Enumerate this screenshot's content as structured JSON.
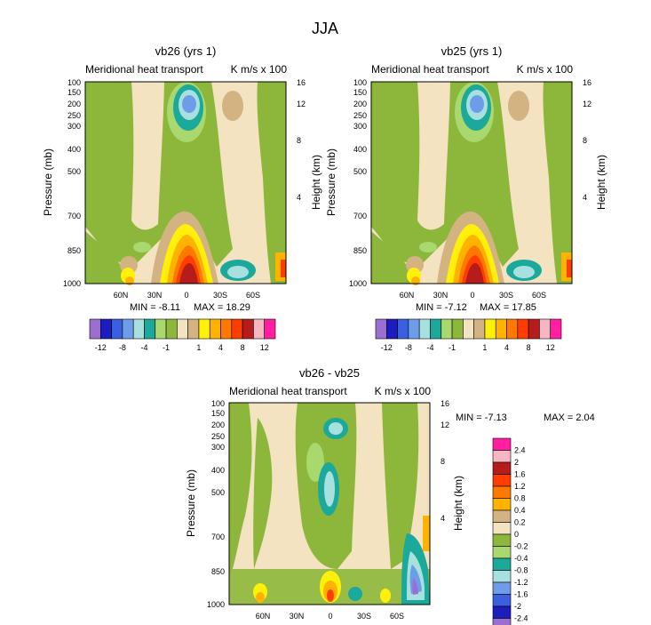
{
  "figure": {
    "title": "JJA",
    "left_tick_labels": [
      "100",
      "150",
      "200",
      "250",
      "300",
      "400",
      "500",
      "700",
      "850",
      "1000"
    ],
    "right_tick_labels": [
      "16",
      "12",
      "8",
      "4"
    ],
    "bottom_tick_labels": [
      "60N",
      "30N",
      "0",
      "30S",
      "60S"
    ]
  },
  "chart_data": [
    {
      "type": "heatmap",
      "panel": "vb26",
      "title": "vb26 (yrs 1)",
      "subtitle_left": "Meridional heat transport",
      "subtitle_right": "K m/s x 100",
      "ylabel": "Pressure (mb)",
      "ylabel_right": "Height (km)",
      "min_label": "MIN = -8.11",
      "max_label": "MAX = 18.29",
      "min": -8.11,
      "max": 18.29,
      "colorbar_labels": [
        "-12",
        "-8",
        "-4",
        "-1",
        "1",
        "4",
        "8",
        "12"
      ]
    },
    {
      "type": "heatmap",
      "panel": "vb25",
      "title": "vb25 (yrs 1)",
      "subtitle_left": "Meridional heat transport",
      "subtitle_right": "K m/s x 100",
      "ylabel": "Pressure (mb)",
      "ylabel_right": "Height (km)",
      "min_label": "MIN = -7.12",
      "max_label": "MAX = 17.85",
      "min": -7.12,
      "max": 17.85,
      "colorbar_labels": [
        "-12",
        "-8",
        "-4",
        "-1",
        "1",
        "4",
        "8",
        "12"
      ]
    },
    {
      "type": "heatmap",
      "panel": "diff",
      "title": "vb26 - vb25",
      "subtitle_left": "Meridional heat transport",
      "subtitle_right": "K m/s x 100",
      "ylabel": "Pressure (mb)",
      "ylabel_right": "Height (km)",
      "min_label": "MIN = -7.13",
      "max_label": "MAX = 2.04",
      "min": -7.13,
      "max": 2.04,
      "colorbar_labels": [
        "2.4",
        "2",
        "1.6",
        "1.2",
        "0.8",
        "0.4",
        "0.2",
        "0",
        "-0.2",
        "-0.4",
        "-0.8",
        "-1.2",
        "-1.6",
        "-2",
        "-2.4"
      ]
    }
  ],
  "colors": {
    "bar16": [
      "#9b6fd0",
      "#1d1dbf",
      "#3a5fe0",
      "#6d9de8",
      "#a8e0e0",
      "#1aa99a",
      "#a8d86e",
      "#8db73b",
      "#f3e3c0",
      "#d4b383",
      "#fff00a",
      "#ffb300",
      "#ff7800",
      "#ff3d00",
      "#b71c1c",
      "#f6b6c2",
      "#ff1fa0"
    ],
    "diff": [
      "#ff1fa0",
      "#f6b6c2",
      "#b71c1c",
      "#ff3d00",
      "#ff7800",
      "#ffb300",
      "#d4b383",
      "#f3e3c0",
      "#8db73b",
      "#a8d86e",
      "#1aa99a",
      "#a8e0e0",
      "#6d9de8",
      "#3a5fe0",
      "#1d1dbf",
      "#9b6fd0"
    ],
    "bg": "#f3e3c0",
    "green": "#8db73b",
    "lightgreen": "#a8d86e",
    "tan": "#d4b383",
    "teal": "#1aa99a",
    "cyan": "#a8e0e0",
    "blue": "#6d9de8",
    "yellow": "#fff00a",
    "orange": "#ffb300",
    "darkorange": "#ff7800",
    "red": "#ff3d00",
    "darkred": "#b71c1c"
  }
}
